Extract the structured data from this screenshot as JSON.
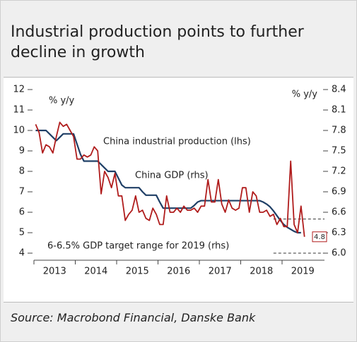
{
  "chart_data": {
    "type": "line",
    "title": "Industrial production points to further decline in growth",
    "source": "Source: Macrobond Financial, Danske Bank",
    "y_label": "% y/y",
    "y2_label": "% y/y",
    "annotations": [
      "China industrial production (lhs)",
      "China GDP (rhs)",
      "6-6.5% GDP target range for 2019 (rhs)"
    ],
    "categories": [
      null,
      null,
      null,
      null,
      null,
      null,
      null,
      null,
      null,
      null,
      null,
      null,
      null,
      null,
      null,
      null,
      null,
      null,
      null,
      null,
      null,
      null,
      null,
      null,
      null,
      null,
      null,
      null,
      null,
      null,
      null,
      null,
      null,
      null,
      null,
      null,
      null,
      null,
      null,
      null,
      null,
      null,
      null,
      null,
      null,
      null,
      null,
      null,
      null,
      null,
      null,
      null,
      null,
      null,
      null,
      null,
      null,
      null,
      null,
      null,
      null,
      null,
      null,
      null,
      null,
      null,
      null,
      null,
      null,
      null,
      null,
      null,
      null,
      null,
      null,
      null,
      null,
      null,
      null
    ],
    "xticks": [
      "2013",
      "2014",
      "2015",
      "2016",
      "2017",
      "2018",
      "2019"
    ],
    "ylim": [
      4,
      12
    ],
    "yticks": [
      4,
      5,
      6,
      7,
      8,
      9,
      10,
      11,
      12
    ],
    "y2lim": [
      6.0,
      8.4
    ],
    "y2ticks": [
      {
        "value": 6.0,
        "label": "6.0"
      },
      6.3,
      6.6,
      6.9,
      7.2,
      7.5,
      7.8,
      8.1,
      8.4
    ],
    "target_range": [
      6.0,
      6.5
    ],
    "series": [
      {
        "name": "China industrial production (lhs)",
        "color": "#b01c1c",
        "end_label": "4.8",
        "values": [
          10.3,
          9.9,
          8.9,
          9.3,
          9.2,
          8.9,
          9.7,
          10.4,
          10.2,
          10.3,
          10.0,
          9.7,
          8.6,
          8.6,
          8.8,
          8.7,
          8.8,
          9.2,
          9.0,
          6.9,
          8.0,
          7.7,
          7.2,
          7.9,
          6.8,
          6.8,
          5.6,
          5.9,
          6.1,
          6.8,
          6.0,
          6.1,
          5.7,
          5.6,
          6.2,
          5.9,
          5.4,
          5.4,
          6.8,
          6.0,
          6.0,
          6.2,
          6.0,
          6.3,
          6.1,
          6.1,
          6.2,
          6.0,
          6.3,
          6.3,
          7.6,
          6.5,
          6.5,
          7.6,
          6.4,
          6.0,
          6.6,
          6.2,
          6.1,
          6.2,
          7.2,
          7.2,
          6.0,
          7.0,
          6.8,
          6.0,
          6.0,
          6.1,
          5.8,
          5.9,
          5.4,
          5.7,
          5.3,
          5.3,
          8.5,
          5.4,
          5.0,
          6.3,
          4.8
        ]
      },
      {
        "name": "China GDP (rhs)",
        "color": "#1f3f66",
        "axis": "y2",
        "values": [
          7.8,
          7.8,
          7.8,
          7.8,
          7.75,
          7.7,
          7.65,
          7.7,
          7.75,
          7.75,
          7.75,
          7.75,
          7.6,
          7.45,
          7.35,
          7.35,
          7.35,
          7.35,
          7.35,
          7.3,
          7.25,
          7.2,
          7.2,
          7.2,
          7.1,
          7.0,
          6.96,
          6.96,
          6.96,
          6.96,
          6.96,
          6.9,
          6.85,
          6.85,
          6.85,
          6.85,
          6.75,
          6.66,
          6.66,
          6.66,
          6.66,
          6.66,
          6.66,
          6.66,
          6.66,
          6.66,
          6.7,
          6.75,
          6.77,
          6.77,
          6.77,
          6.77,
          6.77,
          6.77,
          6.77,
          6.77,
          6.77,
          6.77,
          6.77,
          6.77,
          6.77,
          6.77,
          6.77,
          6.77,
          6.77,
          6.77,
          6.75,
          6.72,
          6.68,
          6.62,
          6.55,
          6.48,
          6.42,
          6.38,
          6.35,
          6.32,
          6.3,
          6.3,
          null
        ]
      }
    ]
  }
}
